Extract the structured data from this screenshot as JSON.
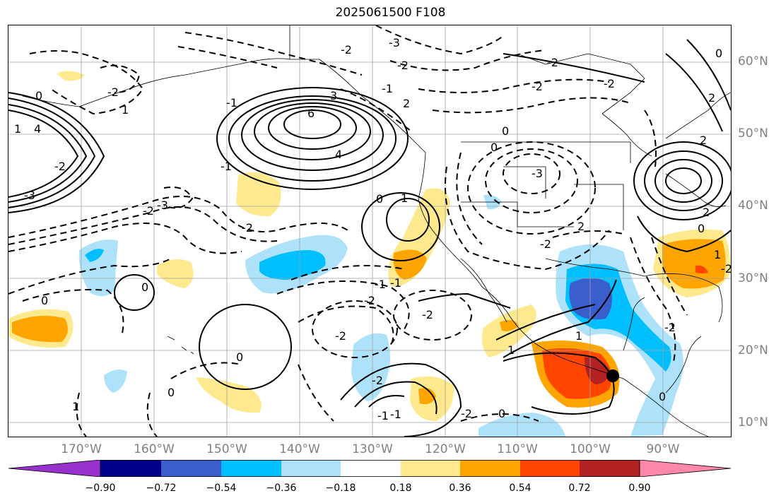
{
  "title": "2025061500 F108",
  "latitude_labels": [
    "60°N",
    "50°N",
    "40°N",
    "30°N",
    "20°N",
    "10°N"
  ],
  "longitude_labels": [
    "170°W",
    "160°W",
    "150°W",
    "140°W",
    "130°W",
    "120°W",
    "110°W",
    "100°W",
    "90°W"
  ],
  "colorbar": {
    "ticks": [
      "−0.90",
      "−0.72",
      "−0.54",
      "−0.36",
      "−0.18",
      "0.18",
      "0.36",
      "0.54",
      "0.72",
      "0.90"
    ],
    "colors": [
      "#9932cc",
      "#00008b",
      "#3a5fcd",
      "#00bfff",
      "#aee2fa",
      "#ffffff",
      "#ffe98f",
      "#ffa500",
      "#ff4500",
      "#b22222",
      "#ff88aa"
    ]
  },
  "contour_labels": [
    "-3",
    "-2",
    "-2",
    "-2",
    "-2",
    "0",
    "1",
    "-1",
    "-2",
    "3",
    "2",
    "6",
    "4",
    "-2",
    "0",
    "-3",
    "0",
    "4",
    "-3",
    "0",
    "-3",
    "0",
    "1",
    "-1",
    "-2",
    "2",
    "-2",
    "-2",
    "-1",
    "-2",
    "1",
    "0",
    "-2",
    "-2",
    "-1",
    "-2",
    "-2",
    "1",
    "-2",
    "0",
    "1",
    "2",
    "2",
    "1",
    "0",
    "1",
    "-2",
    "2",
    "0",
    "-2",
    "-1",
    "0",
    "-1",
    "0",
    "-1",
    "0"
  ]
}
